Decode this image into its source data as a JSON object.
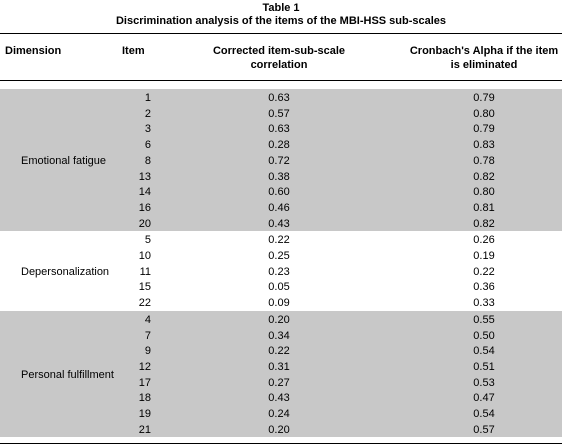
{
  "table": {
    "caption": "Table 1",
    "title": "Discrimination analysis of the items of the MBI-HSS sub-scales",
    "headers": {
      "dimension": "Dimension",
      "item": "Item",
      "corrected_line1": "Corrected item-sub-scale",
      "corrected_line2": "correlation",
      "alpha_line1": "Cronbach's Alpha if the item",
      "alpha_line2": "is eliminated"
    },
    "groups": [
      {
        "dimension": "Emotional fatigue",
        "shaded": true,
        "rows": [
          {
            "item": "1",
            "corrected": "0.63",
            "alpha": "0.79"
          },
          {
            "item": "2",
            "corrected": "0.57",
            "alpha": "0.80"
          },
          {
            "item": "3",
            "corrected": "0.63",
            "alpha": "0.79"
          },
          {
            "item": "6",
            "corrected": "0.28",
            "alpha": "0.83"
          },
          {
            "item": "8",
            "corrected": "0.72",
            "alpha": "0.78"
          },
          {
            "item": "13",
            "corrected": "0.38",
            "alpha": "0.82"
          },
          {
            "item": "14",
            "corrected": "0.60",
            "alpha": "0.80"
          },
          {
            "item": "16",
            "corrected": "0.46",
            "alpha": "0.81"
          },
          {
            "item": "20",
            "corrected": "0.43",
            "alpha": "0.82"
          }
        ]
      },
      {
        "dimension": "Depersonalization",
        "shaded": false,
        "rows": [
          {
            "item": "5",
            "corrected": "0.22",
            "alpha": "0.26"
          },
          {
            "item": "10",
            "corrected": "0.25",
            "alpha": "0.19"
          },
          {
            "item": "11",
            "corrected": "0.23",
            "alpha": "0.22"
          },
          {
            "item": "15",
            "corrected": "0.05",
            "alpha": "0.36"
          },
          {
            "item": "22",
            "corrected": "0.09",
            "alpha": "0.33"
          }
        ]
      },
      {
        "dimension": "Personal fulfillment",
        "shaded": true,
        "rows": [
          {
            "item": "4",
            "corrected": "0.20",
            "alpha": "0.55"
          },
          {
            "item": "7",
            "corrected": "0.34",
            "alpha": "0.50"
          },
          {
            "item": "9",
            "corrected": "0.22",
            "alpha": "0.54"
          },
          {
            "item": "12",
            "corrected": "0.31",
            "alpha": "0.51"
          },
          {
            "item": "17",
            "corrected": "0.27",
            "alpha": "0.53"
          },
          {
            "item": "18",
            "corrected": "0.43",
            "alpha": "0.47"
          },
          {
            "item": "19",
            "corrected": "0.24",
            "alpha": "0.54"
          },
          {
            "item": "21",
            "corrected": "0.20",
            "alpha": "0.57"
          }
        ]
      }
    ],
    "colors": {
      "shade": "#c8c8c8",
      "rule": "#000000"
    }
  }
}
